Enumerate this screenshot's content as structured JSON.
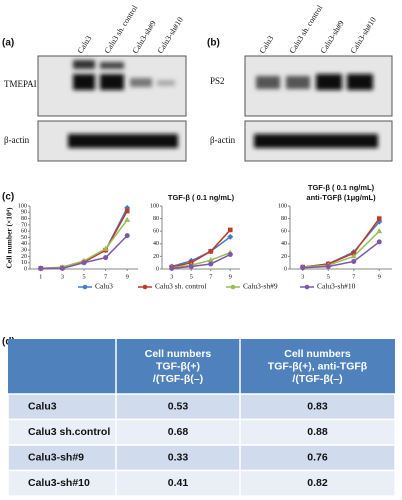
{
  "panel_labels": [
    "(a)",
    "(b)",
    "(c)",
    "(d)"
  ],
  "blots": [
    {
      "lanes": [
        "Calu3",
        "Calu3 sh. control",
        "Calu3-sh#9",
        "Calu3-sh#10"
      ],
      "rows": [
        "TMEPAI",
        "β-actin"
      ]
    },
    {
      "lanes": [
        "Calu3",
        "Calu3 sh. control",
        "Calu3-sh#9",
        "Calu3-sh#10"
      ],
      "rows": [
        "PS2",
        "β-actin"
      ]
    }
  ],
  "chart_data": [
    {
      "type": "line",
      "ylabel": "Cell number (×10⁴)",
      "x": [
        1,
        3,
        5,
        7,
        9
      ],
      "xlim": [
        0,
        10
      ],
      "xticks": [
        1,
        3,
        5,
        7,
        9
      ],
      "ylim": [
        0,
        100
      ],
      "yticks": [
        0,
        10,
        20,
        30,
        40,
        50,
        60,
        70,
        80,
        90,
        100
      ],
      "series": [
        {
          "name": "Calu3",
          "color": "#3f7fc5",
          "values": [
            1,
            2,
            11,
            30,
            97
          ]
        },
        {
          "name": "Calu3 sh. control",
          "color": "#c0392b",
          "values": [
            1,
            2,
            11,
            30,
            92
          ]
        },
        {
          "name": "Calu3-sh#9",
          "color": "#9bbb59",
          "values": [
            1,
            3,
            13,
            32,
            78
          ]
        },
        {
          "name": "Calu3-sh#10",
          "color": "#7e57a8",
          "values": [
            1,
            1,
            10,
            18,
            53
          ]
        }
      ]
    },
    {
      "type": "line",
      "title": [
        "TGF-β ( 0.1 ng/mL)"
      ],
      "x": [
        3,
        5,
        7,
        9
      ],
      "xlim": [
        2,
        10
      ],
      "xticks": [
        3,
        5,
        7,
        9
      ],
      "ylim": [
        0,
        100
      ],
      "yticks": [
        0,
        20,
        40,
        60,
        80,
        100
      ],
      "series": [
        {
          "color": "#3f7fc5",
          "values": [
            4,
            13,
            28,
            51
          ]
        },
        {
          "color": "#c0392b",
          "values": [
            3,
            10,
            28,
            62
          ]
        },
        {
          "color": "#9bbb59",
          "values": [
            2,
            6,
            14,
            26
          ]
        },
        {
          "color": "#7e57a8",
          "values": [
            1,
            4,
            8,
            23
          ]
        }
      ]
    },
    {
      "type": "line",
      "title": [
        "TGF-β ( 0.1 ng/mL)",
        "anti-TGFβ (1μg/mL)"
      ],
      "x": [
        3,
        5,
        7,
        9
      ],
      "xlim": [
        2,
        10
      ],
      "xticks": [
        3,
        5,
        7,
        9
      ],
      "ylim": [
        0,
        100
      ],
      "yticks": [
        0,
        20,
        40,
        60,
        80,
        100
      ],
      "series": [
        {
          "color": "#3f7fc5",
          "values": [
            3,
            8,
            27,
            75
          ]
        },
        {
          "color": "#c0392b",
          "values": [
            3,
            8,
            25,
            80
          ]
        },
        {
          "color": "#9bbb59",
          "values": [
            3,
            6,
            20,
            60
          ]
        },
        {
          "color": "#7e57a8",
          "values": [
            2,
            4,
            12,
            43
          ]
        }
      ]
    }
  ],
  "table": {
    "header": [
      [
        "Cell numbers",
        "TGF-β(+)",
        "/(TGF-β(–)"
      ],
      [
        "Cell numbers",
        "TGF-β(+), anti-TGFβ",
        "/(TGF-β(–)"
      ]
    ],
    "rows": [
      [
        "Calu3",
        "0.53",
        "0.83"
      ],
      [
        "Calu3 sh.control",
        "0.68",
        "0.88"
      ],
      [
        "Calu3-sh#9",
        "0.33",
        "0.76"
      ],
      [
        "Calu3-sh#10",
        "0.41",
        "0.82"
      ]
    ]
  }
}
